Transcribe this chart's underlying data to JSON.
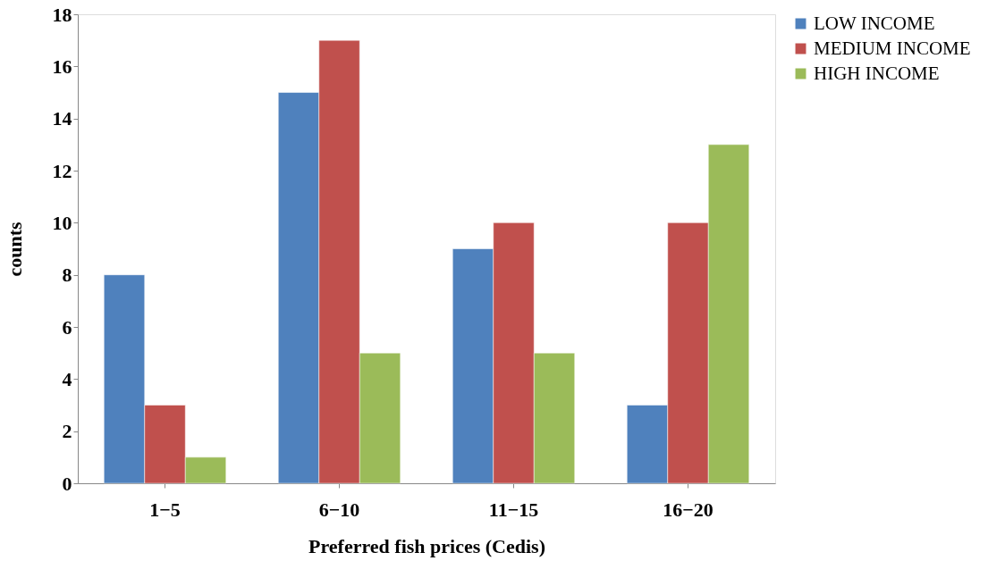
{
  "chart_data": {
    "type": "bar",
    "xlabel": "Preferred fish prices (Cedis)",
    "ylabel": "counts",
    "categories": [
      "1−5",
      "6−10",
      "11−15",
      "16−20"
    ],
    "series": [
      {
        "name": "LOW INCOME",
        "color": "#4f81bd",
        "values": [
          8,
          15,
          9,
          3
        ]
      },
      {
        "name": "MEDIUM INCOME",
        "color": "#c0504d",
        "values": [
          3,
          17,
          10,
          10
        ]
      },
      {
        "name": "HIGH INCOME",
        "color": "#9bbb59",
        "values": [
          1,
          5,
          5,
          13
        ]
      }
    ],
    "ylim": [
      0,
      18
    ],
    "yticks": [
      0,
      2,
      4,
      6,
      8,
      10,
      12,
      14,
      16,
      18
    ],
    "grid": false,
    "legend": "top right"
  }
}
